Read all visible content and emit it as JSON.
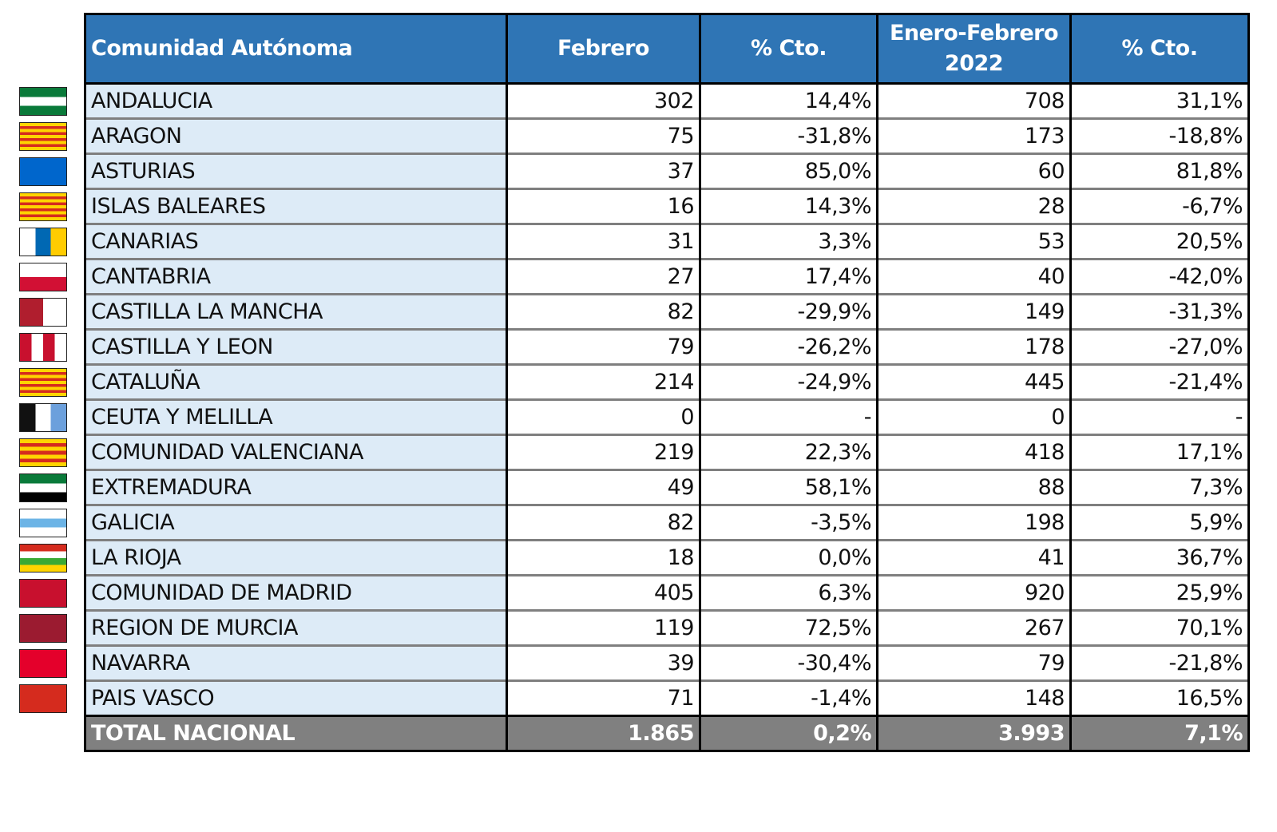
{
  "header": [
    "Comunidad Autónoma",
    "Febrero",
    "% Cto.",
    "Enero-Febrero 2022",
    "% Cto."
  ],
  "rows": [
    {
      "name": "ANDALUCIA",
      "feb": "302",
      "feb_pct": "14,4%",
      "ef": "708",
      "ef_pct": "31,1%",
      "flag": {
        "dir": "h",
        "colors": [
          "#0a7a3a",
          "#ffffff",
          "#0a7a3a"
        ]
      }
    },
    {
      "name": "ARAGON",
      "feb": "75",
      "feb_pct": "-31,8%",
      "ef": "173",
      "ef_pct": "-18,8%",
      "flag": {
        "dir": "h",
        "colors": [
          "#ffd400",
          "#d52b1e",
          "#ffd400",
          "#d52b1e",
          "#ffd400",
          "#d52b1e",
          "#ffd400",
          "#d52b1e",
          "#ffd400"
        ]
      }
    },
    {
      "name": "ASTURIAS",
      "feb": "37",
      "feb_pct": "85,0%",
      "ef": "60",
      "ef_pct": "81,8%",
      "flag": {
        "dir": "h",
        "colors": [
          "#0066cc"
        ]
      }
    },
    {
      "name": "ISLAS BALEARES",
      "feb": "16",
      "feb_pct": "14,3%",
      "ef": "28",
      "ef_pct": "-6,7%",
      "flag": {
        "dir": "h",
        "colors": [
          "#ffd400",
          "#d52b1e",
          "#ffd400",
          "#d52b1e",
          "#ffd400",
          "#d52b1e",
          "#ffd400",
          "#d52b1e",
          "#ffd400"
        ]
      }
    },
    {
      "name": "CANARIAS",
      "feb": "31",
      "feb_pct": "3,3%",
      "ef": "53",
      "ef_pct": "20,5%",
      "flag": {
        "dir": "v",
        "colors": [
          "#ffffff",
          "#0068b3",
          "#ffcc00"
        ]
      }
    },
    {
      "name": "CANTABRIA",
      "feb": "27",
      "feb_pct": "17,4%",
      "ef": "40",
      "ef_pct": "-42,0%",
      "flag": {
        "dir": "h",
        "colors": [
          "#ffffff",
          "#d21034"
        ]
      }
    },
    {
      "name": "CASTILLA  LA MANCHA",
      "feb": "82",
      "feb_pct": "-29,9%",
      "ef": "149",
      "ef_pct": "-31,3%",
      "flag": {
        "dir": "v",
        "colors": [
          "#b01e2e",
          "#ffffff"
        ]
      }
    },
    {
      "name": "CASTILLA Y LEON",
      "feb": "79",
      "feb_pct": "-26,2%",
      "ef": "178",
      "ef_pct": "-27,0%",
      "flag": {
        "dir": "v",
        "colors": [
          "#c8102e",
          "#ffffff",
          "#c8102e",
          "#ffffff"
        ]
      }
    },
    {
      "name": "CATALUÑA",
      "feb": "214",
      "feb_pct": "-24,9%",
      "ef": "445",
      "ef_pct": "-21,4%",
      "flag": {
        "dir": "h",
        "colors": [
          "#ffd400",
          "#d52b1e",
          "#ffd400",
          "#d52b1e",
          "#ffd400",
          "#d52b1e",
          "#ffd400",
          "#d52b1e",
          "#ffd400"
        ]
      }
    },
    {
      "name": "CEUTA Y MELILLA",
      "feb": "0",
      "feb_pct": "-",
      "ef": "0",
      "ef_pct": "-",
      "flag": {
        "dir": "v",
        "colors": [
          "#111111",
          "#ffffff",
          "#6ca0dc"
        ]
      }
    },
    {
      "name": "COMUNIDAD VALENCIANA",
      "feb": "219",
      "feb_pct": "22,3%",
      "ef": "418",
      "ef_pct": "17,1%",
      "flag": {
        "dir": "h",
        "colors": [
          "#ffd400",
          "#d52b1e",
          "#ffd400",
          "#d52b1e",
          "#ffd400",
          "#d52b1e",
          "#ffd400"
        ]
      }
    },
    {
      "name": "EXTREMADURA",
      "feb": "49",
      "feb_pct": "58,1%",
      "ef": "88",
      "ef_pct": "7,3%",
      "flag": {
        "dir": "h",
        "colors": [
          "#0a7a3a",
          "#ffffff",
          "#000000"
        ]
      }
    },
    {
      "name": "GALICIA",
      "feb": "82",
      "feb_pct": "-3,5%",
      "ef": "198",
      "ef_pct": "5,9%",
      "flag": {
        "dir": "h",
        "colors": [
          "#ffffff",
          "#6cb4e6",
          "#ffffff"
        ]
      }
    },
    {
      "name": "LA RIOJA",
      "feb": "18",
      "feb_pct": "0,0%",
      "ef": "41",
      "ef_pct": "36,7%",
      "flag": {
        "dir": "h",
        "colors": [
          "#d52b1e",
          "#ffffff",
          "#3aa935",
          "#ffd400"
        ]
      }
    },
    {
      "name": "COMUNIDAD DE MADRID",
      "feb": "405",
      "feb_pct": "6,3%",
      "ef": "920",
      "ef_pct": "25,9%",
      "flag": {
        "dir": "h",
        "colors": [
          "#c8102e"
        ]
      }
    },
    {
      "name": "REGION DE MURCIA",
      "feb": "119",
      "feb_pct": "72,5%",
      "ef": "267",
      "ef_pct": "70,1%",
      "flag": {
        "dir": "h",
        "colors": [
          "#9b1b30"
        ]
      }
    },
    {
      "name": "NAVARRA",
      "feb": "39",
      "feb_pct": "-30,4%",
      "ef": "79",
      "ef_pct": "-21,8%",
      "flag": {
        "dir": "h",
        "colors": [
          "#e4002b"
        ]
      }
    },
    {
      "name": "PAIS VASCO",
      "feb": "71",
      "feb_pct": "-1,4%",
      "ef": "148",
      "ef_pct": "16,5%",
      "flag": {
        "dir": "h",
        "colors": [
          "#d52b1e"
        ]
      }
    }
  ],
  "total": {
    "name": "TOTAL NACIONAL",
    "feb": "1.865",
    "feb_pct": "0,2%",
    "ef": "3.993",
    "ef_pct": "7,1%"
  },
  "colors": {
    "header_bg": "#2f75b5",
    "name_col_bg": "#ddebf7",
    "total_bg": "#808080"
  }
}
